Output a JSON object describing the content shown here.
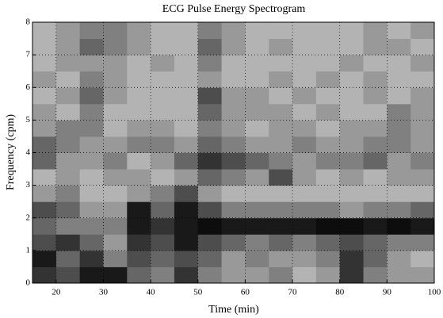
{
  "chart_data": {
    "type": "heatmap",
    "title": "ECG Pulse Energy Spectrogram",
    "xlabel": "Time (min)",
    "ylabel": "Frequency (cpm)",
    "xlim": [
      15,
      100
    ],
    "ylim": [
      0,
      8
    ],
    "xticks": [
      20,
      30,
      40,
      50,
      60,
      70,
      80,
      90,
      100
    ],
    "yticks": [
      0,
      1,
      2,
      3,
      4,
      5,
      6,
      7,
      8
    ],
    "grid": true,
    "x": [
      17.5,
      22.5,
      27.5,
      32.5,
      37.5,
      42.5,
      47.5,
      52.5,
      57.5,
      62.5,
      67.5,
      72.5,
      77.5,
      82.5,
      87.5,
      92.5,
      97.5
    ],
    "y": [
      0.25,
      0.75,
      1.25,
      1.75,
      2.25,
      2.75,
      3.25,
      3.75,
      4.25,
      4.75,
      5.25,
      5.75,
      6.25,
      6.75,
      7.25,
      7.75
    ],
    "values": [
      [
        0.8,
        0.7,
        0.9,
        0.9,
        0.6,
        0.5,
        0.8,
        0.5,
        0.4,
        0.4,
        0.5,
        0.3,
        0.4,
        0.8,
        0.5,
        0.4,
        0.4
      ],
      [
        0.9,
        0.6,
        0.8,
        0.5,
        0.7,
        0.6,
        0.7,
        0.6,
        0.4,
        0.5,
        0.4,
        0.4,
        0.5,
        0.8,
        0.6,
        0.4,
        0.3
      ],
      [
        0.7,
        0.8,
        0.6,
        0.4,
        0.8,
        0.7,
        0.9,
        0.7,
        0.6,
        0.5,
        0.6,
        0.5,
        0.6,
        0.7,
        0.6,
        0.5,
        0.5
      ],
      [
        0.6,
        0.5,
        0.5,
        0.5,
        0.9,
        0.8,
        0.9,
        0.95,
        0.9,
        0.9,
        0.9,
        0.9,
        0.95,
        0.95,
        0.9,
        0.95,
        0.9
      ],
      [
        0.7,
        0.6,
        0.4,
        0.4,
        0.9,
        0.6,
        0.9,
        0.7,
        0.5,
        0.5,
        0.5,
        0.5,
        0.5,
        0.4,
        0.5,
        0.5,
        0.6
      ],
      [
        0.4,
        0.5,
        0.3,
        0.3,
        0.4,
        0.5,
        0.7,
        0.4,
        0.3,
        0.3,
        0.3,
        0.3,
        0.3,
        0.3,
        0.3,
        0.3,
        0.3
      ],
      [
        0.3,
        0.4,
        0.3,
        0.4,
        0.4,
        0.3,
        0.4,
        0.6,
        0.5,
        0.4,
        0.7,
        0.4,
        0.3,
        0.4,
        0.3,
        0.4,
        0.4
      ],
      [
        0.6,
        0.4,
        0.4,
        0.5,
        0.3,
        0.4,
        0.6,
        0.8,
        0.7,
        0.6,
        0.5,
        0.4,
        0.5,
        0.5,
        0.6,
        0.4,
        0.5
      ],
      [
        0.6,
        0.5,
        0.4,
        0.4,
        0.5,
        0.5,
        0.4,
        0.6,
        0.5,
        0.4,
        0.4,
        0.5,
        0.4,
        0.4,
        0.5,
        0.5,
        0.4
      ],
      [
        0.4,
        0.5,
        0.5,
        0.3,
        0.4,
        0.4,
        0.3,
        0.5,
        0.4,
        0.3,
        0.4,
        0.4,
        0.3,
        0.4,
        0.4,
        0.5,
        0.4
      ],
      [
        0.4,
        0.3,
        0.5,
        0.3,
        0.3,
        0.3,
        0.3,
        0.6,
        0.4,
        0.4,
        0.4,
        0.3,
        0.4,
        0.3,
        0.3,
        0.5,
        0.4
      ],
      [
        0.3,
        0.4,
        0.6,
        0.4,
        0.3,
        0.3,
        0.3,
        0.7,
        0.4,
        0.4,
        0.3,
        0.4,
        0.3,
        0.3,
        0.4,
        0.3,
        0.4
      ],
      [
        0.4,
        0.3,
        0.5,
        0.4,
        0.3,
        0.3,
        0.3,
        0.4,
        0.3,
        0.3,
        0.4,
        0.3,
        0.4,
        0.3,
        0.4,
        0.3,
        0.3
      ],
      [
        0.3,
        0.4,
        0.4,
        0.4,
        0.3,
        0.4,
        0.3,
        0.5,
        0.3,
        0.3,
        0.3,
        0.3,
        0.3,
        0.4,
        0.3,
        0.3,
        0.4
      ],
      [
        0.3,
        0.4,
        0.6,
        0.5,
        0.4,
        0.3,
        0.3,
        0.6,
        0.4,
        0.3,
        0.4,
        0.3,
        0.3,
        0.3,
        0.4,
        0.4,
        0.3
      ],
      [
        0.3,
        0.4,
        0.5,
        0.5,
        0.4,
        0.3,
        0.3,
        0.5,
        0.4,
        0.3,
        0.3,
        0.3,
        0.3,
        0.3,
        0.4,
        0.3,
        0.4
      ]
    ]
  }
}
